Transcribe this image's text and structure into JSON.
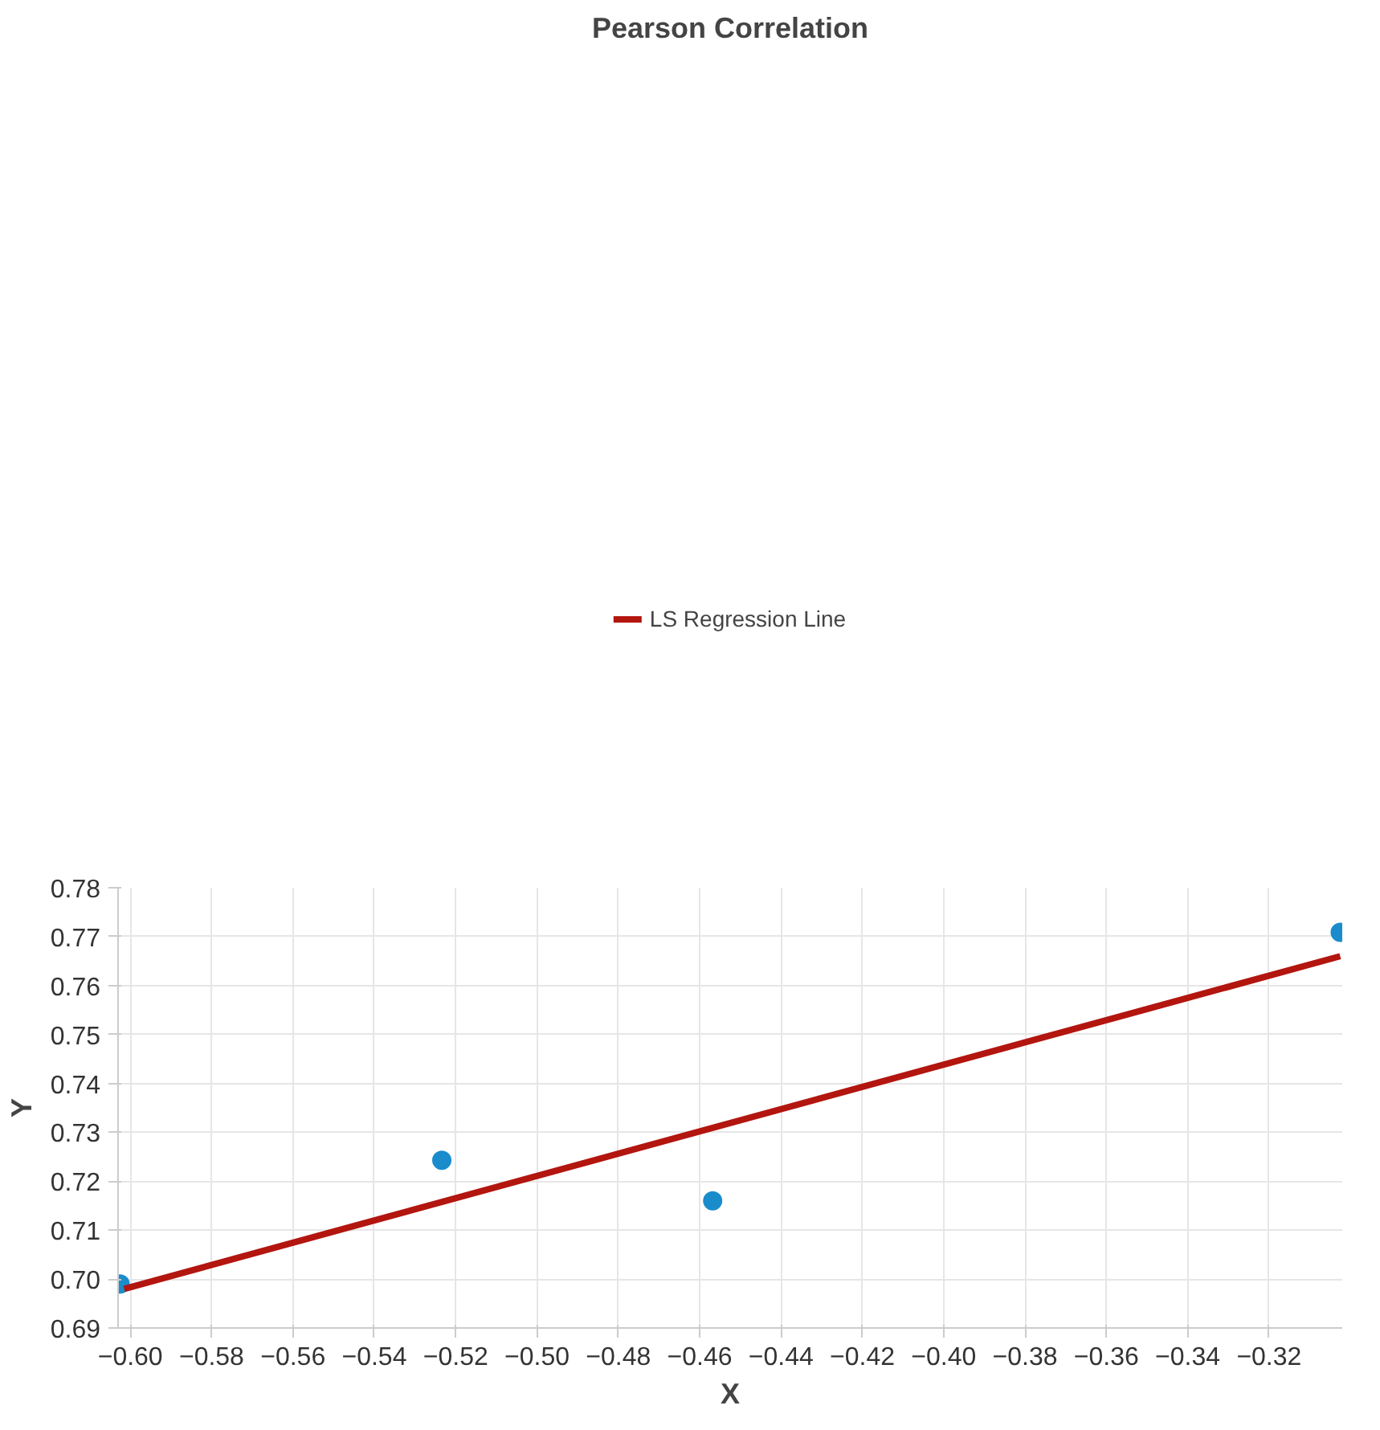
{
  "chart_data": {
    "type": "scatter",
    "title": "Pearson Correlation",
    "xlabel": "X",
    "ylabel": "Y",
    "xlim": [
      -0.603,
      -0.302
    ],
    "ylim": [
      0.69,
      0.78
    ],
    "xticks": [
      {
        "value": -0.6,
        "label": "−0.60"
      },
      {
        "value": -0.58,
        "label": "−0.58"
      },
      {
        "value": -0.56,
        "label": "−0.56"
      },
      {
        "value": -0.54,
        "label": "−0.54"
      },
      {
        "value": -0.52,
        "label": "−0.52"
      },
      {
        "value": -0.5,
        "label": "−0.50"
      },
      {
        "value": -0.48,
        "label": "−0.48"
      },
      {
        "value": -0.46,
        "label": "−0.46"
      },
      {
        "value": -0.44,
        "label": "−0.44"
      },
      {
        "value": -0.42,
        "label": "−0.42"
      },
      {
        "value": -0.4,
        "label": "−0.40"
      },
      {
        "value": -0.38,
        "label": "−0.38"
      },
      {
        "value": -0.36,
        "label": "−0.36"
      },
      {
        "value": -0.34,
        "label": "−0.34"
      },
      {
        "value": -0.32,
        "label": "−0.32"
      }
    ],
    "yticks": [
      {
        "value": 0.69,
        "label": "0.69"
      },
      {
        "value": 0.7,
        "label": "0.70"
      },
      {
        "value": 0.71,
        "label": "0.71"
      },
      {
        "value": 0.72,
        "label": "0.72"
      },
      {
        "value": 0.73,
        "label": "0.73"
      },
      {
        "value": 0.74,
        "label": "0.74"
      },
      {
        "value": 0.75,
        "label": "0.75"
      },
      {
        "value": 0.76,
        "label": "0.76"
      },
      {
        "value": 0.77,
        "label": "0.77"
      },
      {
        "value": 0.78,
        "label": "0.78"
      }
    ],
    "grid": true,
    "legend": "top",
    "series": [
      {
        "marker": "circle",
        "color": "#1a8ccc",
        "x": [
          -0.6025,
          -0.5234,
          -0.4568,
          -0.3025
        ],
        "values": [
          0.699,
          0.7243,
          0.716,
          0.7709
        ]
      },
      {
        "type": "line",
        "name": "LS Regression Line",
        "color": "#b3150f",
        "x": [
          -0.6015,
          -0.3025
        ],
        "values": [
          0.698,
          0.766
        ]
      }
    ]
  }
}
